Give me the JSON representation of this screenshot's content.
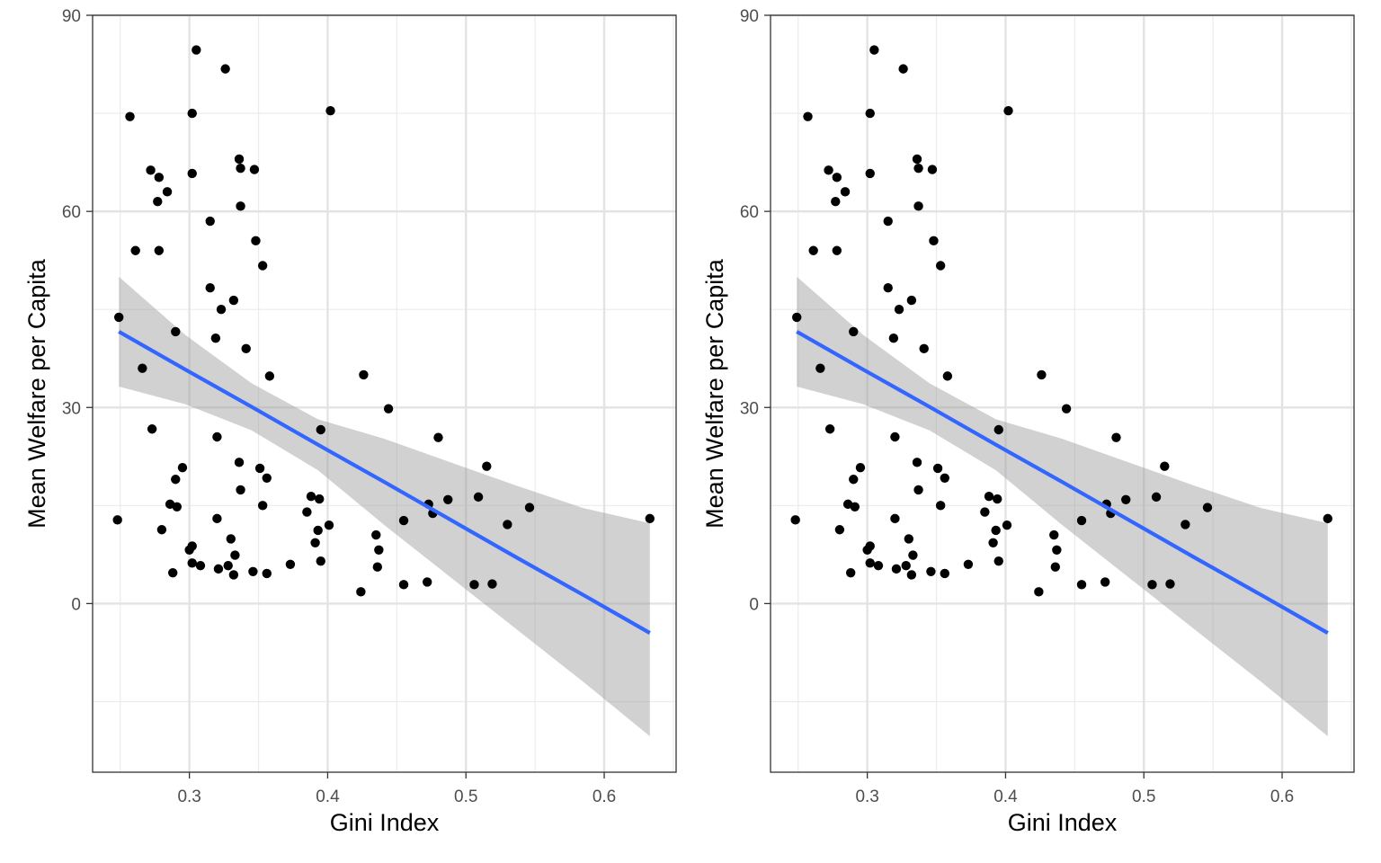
{
  "chart_data": [
    {
      "type": "scatter",
      "xlabel": "Gini Index",
      "ylabel": "Mean Welfare per Capita",
      "xlim": [
        0.23,
        0.652
      ],
      "ylim": [
        -25.8,
        90
      ],
      "x_ticks": [
        0.3,
        0.4,
        0.5,
        0.6
      ],
      "x_tick_labels": [
        "0.3",
        "0.4",
        "0.5",
        "0.6"
      ],
      "y_ticks": [
        0,
        30,
        60,
        90
      ],
      "y_tick_labels": [
        "0",
        "30",
        "60",
        "90"
      ],
      "grid": true,
      "points_color": "#000000",
      "points": [
        [
          0.249,
          43.8
        ],
        [
          0.248,
          12.8
        ],
        [
          0.257,
          74.5
        ],
        [
          0.261,
          54.0
        ],
        [
          0.266,
          36.0
        ],
        [
          0.272,
          66.3
        ],
        [
          0.273,
          26.7
        ],
        [
          0.277,
          61.5
        ],
        [
          0.278,
          65.2
        ],
        [
          0.278,
          54.0
        ],
        [
          0.28,
          11.3
        ],
        [
          0.284,
          63.0
        ],
        [
          0.286,
          15.2
        ],
        [
          0.288,
          4.7
        ],
        [
          0.29,
          19.0
        ],
        [
          0.29,
          41.6
        ],
        [
          0.291,
          14.8
        ],
        [
          0.295,
          20.8
        ],
        [
          0.3,
          8.2
        ],
        [
          0.302,
          8.8
        ],
        [
          0.302,
          6.2
        ],
        [
          0.302,
          75.0
        ],
        [
          0.302,
          65.8
        ],
        [
          0.305,
          84.7
        ],
        [
          0.308,
          5.8
        ],
        [
          0.315,
          58.5
        ],
        [
          0.315,
          48.3
        ],
        [
          0.319,
          40.6
        ],
        [
          0.32,
          25.5
        ],
        [
          0.32,
          13.0
        ],
        [
          0.321,
          5.3
        ],
        [
          0.323,
          45.0
        ],
        [
          0.326,
          81.8
        ],
        [
          0.328,
          5.8
        ],
        [
          0.33,
          9.9
        ],
        [
          0.332,
          46.4
        ],
        [
          0.332,
          4.4
        ],
        [
          0.333,
          7.4
        ],
        [
          0.336,
          68.0
        ],
        [
          0.336,
          21.6
        ],
        [
          0.337,
          17.4
        ],
        [
          0.337,
          66.6
        ],
        [
          0.337,
          60.8
        ],
        [
          0.341,
          39.0
        ],
        [
          0.346,
          4.9
        ],
        [
          0.347,
          66.4
        ],
        [
          0.348,
          55.5
        ],
        [
          0.351,
          20.7
        ],
        [
          0.353,
          51.7
        ],
        [
          0.353,
          15.0
        ],
        [
          0.356,
          19.2
        ],
        [
          0.356,
          4.6
        ],
        [
          0.358,
          34.8
        ],
        [
          0.373,
          6.0
        ],
        [
          0.385,
          14.0
        ],
        [
          0.388,
          16.4
        ],
        [
          0.391,
          9.3
        ],
        [
          0.393,
          11.2
        ],
        [
          0.394,
          16.0
        ],
        [
          0.395,
          6.5
        ],
        [
          0.395,
          26.6
        ],
        [
          0.401,
          12.0
        ],
        [
          0.402,
          75.4
        ],
        [
          0.424,
          1.8
        ],
        [
          0.426,
          35.0
        ],
        [
          0.435,
          10.5
        ],
        [
          0.436,
          5.6
        ],
        [
          0.437,
          8.2
        ],
        [
          0.444,
          29.8
        ],
        [
          0.455,
          2.9
        ],
        [
          0.455,
          12.7
        ],
        [
          0.472,
          3.3
        ],
        [
          0.473,
          15.2
        ],
        [
          0.476,
          13.8
        ],
        [
          0.48,
          25.4
        ],
        [
          0.487,
          15.9
        ],
        [
          0.506,
          2.9
        ],
        [
          0.509,
          16.3
        ],
        [
          0.515,
          21.0
        ],
        [
          0.519,
          3.0
        ],
        [
          0.53,
          12.1
        ],
        [
          0.546,
          14.7
        ],
        [
          0.633,
          13.0
        ]
      ],
      "fit": {
        "color": "#3366FF",
        "band_color": "#999999",
        "x": [
          0.249,
          0.297,
          0.345,
          0.393,
          0.441,
          0.489,
          0.537,
          0.585,
          0.633
        ],
        "y": [
          41.6,
          35.8,
          30.1,
          24.3,
          18.6,
          12.8,
          7.0,
          1.3,
          -4.5
        ],
        "lower": [
          33.2,
          30.5,
          26.5,
          20.4,
          12.0,
          4.0,
          -4.0,
          -12.0,
          -20.3
        ],
        "upper": [
          50.0,
          41.1,
          33.7,
          28.2,
          25.2,
          21.6,
          18.0,
          14.6,
          12.3
        ]
      }
    },
    {
      "type": "scatter",
      "xlabel": "Gini Index",
      "ylabel": "Mean Welfare per Capita",
      "xlim": [
        0.23,
        0.652
      ],
      "ylim": [
        -25.8,
        90
      ],
      "x_ticks": [
        0.3,
        0.4,
        0.5,
        0.6
      ],
      "x_tick_labels": [
        "0.3",
        "0.4",
        "0.5",
        "0.6"
      ],
      "y_ticks": [
        0,
        30,
        60,
        90
      ],
      "y_tick_labels": [
        "0",
        "30",
        "60",
        "90"
      ],
      "grid": true,
      "points_color": "#000000",
      "points": [
        [
          0.249,
          43.8
        ],
        [
          0.248,
          12.8
        ],
        [
          0.257,
          74.5
        ],
        [
          0.261,
          54.0
        ],
        [
          0.266,
          36.0
        ],
        [
          0.272,
          66.3
        ],
        [
          0.273,
          26.7
        ],
        [
          0.277,
          61.5
        ],
        [
          0.278,
          65.2
        ],
        [
          0.278,
          54.0
        ],
        [
          0.28,
          11.3
        ],
        [
          0.284,
          63.0
        ],
        [
          0.286,
          15.2
        ],
        [
          0.288,
          4.7
        ],
        [
          0.29,
          19.0
        ],
        [
          0.29,
          41.6
        ],
        [
          0.291,
          14.8
        ],
        [
          0.295,
          20.8
        ],
        [
          0.3,
          8.2
        ],
        [
          0.302,
          8.8
        ],
        [
          0.302,
          6.2
        ],
        [
          0.302,
          75.0
        ],
        [
          0.302,
          65.8
        ],
        [
          0.305,
          84.7
        ],
        [
          0.308,
          5.8
        ],
        [
          0.315,
          58.5
        ],
        [
          0.315,
          48.3
        ],
        [
          0.319,
          40.6
        ],
        [
          0.32,
          25.5
        ],
        [
          0.32,
          13.0
        ],
        [
          0.321,
          5.3
        ],
        [
          0.323,
          45.0
        ],
        [
          0.326,
          81.8
        ],
        [
          0.328,
          5.8
        ],
        [
          0.33,
          9.9
        ],
        [
          0.332,
          46.4
        ],
        [
          0.332,
          4.4
        ],
        [
          0.333,
          7.4
        ],
        [
          0.336,
          68.0
        ],
        [
          0.336,
          21.6
        ],
        [
          0.337,
          17.4
        ],
        [
          0.337,
          66.6
        ],
        [
          0.337,
          60.8
        ],
        [
          0.341,
          39.0
        ],
        [
          0.346,
          4.9
        ],
        [
          0.347,
          66.4
        ],
        [
          0.348,
          55.5
        ],
        [
          0.351,
          20.7
        ],
        [
          0.353,
          51.7
        ],
        [
          0.353,
          15.0
        ],
        [
          0.356,
          19.2
        ],
        [
          0.356,
          4.6
        ],
        [
          0.358,
          34.8
        ],
        [
          0.373,
          6.0
        ],
        [
          0.385,
          14.0
        ],
        [
          0.388,
          16.4
        ],
        [
          0.391,
          9.3
        ],
        [
          0.393,
          11.2
        ],
        [
          0.394,
          16.0
        ],
        [
          0.395,
          6.5
        ],
        [
          0.395,
          26.6
        ],
        [
          0.401,
          12.0
        ],
        [
          0.402,
          75.4
        ],
        [
          0.424,
          1.8
        ],
        [
          0.426,
          35.0
        ],
        [
          0.435,
          10.5
        ],
        [
          0.436,
          5.6
        ],
        [
          0.437,
          8.2
        ],
        [
          0.444,
          29.8
        ],
        [
          0.455,
          2.9
        ],
        [
          0.455,
          12.7
        ],
        [
          0.472,
          3.3
        ],
        [
          0.473,
          15.2
        ],
        [
          0.476,
          13.8
        ],
        [
          0.48,
          25.4
        ],
        [
          0.487,
          15.9
        ],
        [
          0.506,
          2.9
        ],
        [
          0.509,
          16.3
        ],
        [
          0.515,
          21.0
        ],
        [
          0.519,
          3.0
        ],
        [
          0.53,
          12.1
        ],
        [
          0.546,
          14.7
        ],
        [
          0.633,
          13.0
        ]
      ],
      "fit": {
        "color": "#3366FF",
        "band_color": "#999999",
        "x": [
          0.249,
          0.297,
          0.345,
          0.393,
          0.441,
          0.489,
          0.537,
          0.585,
          0.633
        ],
        "y": [
          41.6,
          35.8,
          30.1,
          24.3,
          18.6,
          12.8,
          7.0,
          1.3,
          -4.5
        ],
        "lower": [
          33.2,
          30.5,
          26.5,
          20.4,
          12.0,
          4.0,
          -4.0,
          -12.0,
          -20.3
        ],
        "upper": [
          50.0,
          41.1,
          33.7,
          28.2,
          25.2,
          21.6,
          18.0,
          14.6,
          12.3
        ]
      }
    }
  ]
}
